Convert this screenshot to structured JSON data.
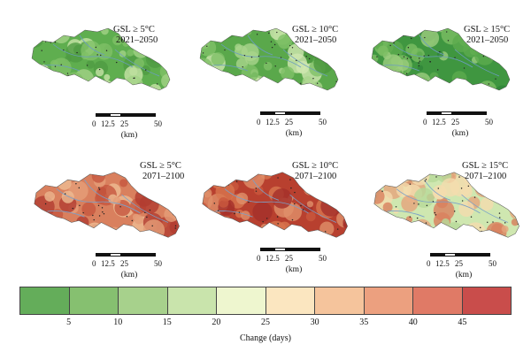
{
  "panels": [
    {
      "id": "p1",
      "line1": "GSL ≥ 5°C",
      "line2": "2021–2050",
      "palette": [
        "#5fae4f",
        "#7fc067",
        "#a2d286",
        "#4f9b42",
        "#c7e3a6"
      ]
    },
    {
      "id": "p2",
      "line1": "GSL ≥ 10°C",
      "line2": "2021–2050",
      "palette": [
        "#5aa84b",
        "#80c068",
        "#a9d48c",
        "#4a963d",
        "#cfe7b0"
      ]
    },
    {
      "id": "p3",
      "line1": "GSL ≥ 15°C",
      "line2": "2021–2050",
      "palette": [
        "#3f9640",
        "#5cab4e",
        "#7cbe63",
        "#2f8538",
        "#9ccd7e"
      ]
    },
    {
      "id": "p4",
      "line1": "GSL ≥ 5°C",
      "line2": "2071–2100",
      "palette": [
        "#d9805e",
        "#e59d78",
        "#c5563f",
        "#edbb92",
        "#b23c31"
      ]
    },
    {
      "id": "p5",
      "line1": "GSL ≥ 10°C",
      "line2": "2071–2100",
      "palette": [
        "#b8402f",
        "#c9573d",
        "#a42f2b",
        "#d8764f",
        "#e0906a"
      ]
    },
    {
      "id": "p6",
      "line1": "GSL ≥ 15°C",
      "line2": "2071–2100",
      "palette": [
        "#cfe7b0",
        "#f4dcae",
        "#e5a47c",
        "#b6d99a",
        "#d9805e"
      ]
    }
  ],
  "scale": {
    "ticks": [
      "0",
      "12.5",
      "25",
      "50"
    ],
    "unit": "(km)"
  },
  "legend": {
    "colors": [
      "#64ad5a",
      "#86c070",
      "#a7d18c",
      "#c9e4ac",
      "#eef6cf",
      "#fbe6c0",
      "#f5c49c",
      "#eca07f",
      "#e07a66",
      "#c94d4b"
    ],
    "ticks": [
      "5",
      "10",
      "15",
      "20",
      "25",
      "30",
      "35",
      "40",
      "45"
    ],
    "label": "Change (days)"
  }
}
